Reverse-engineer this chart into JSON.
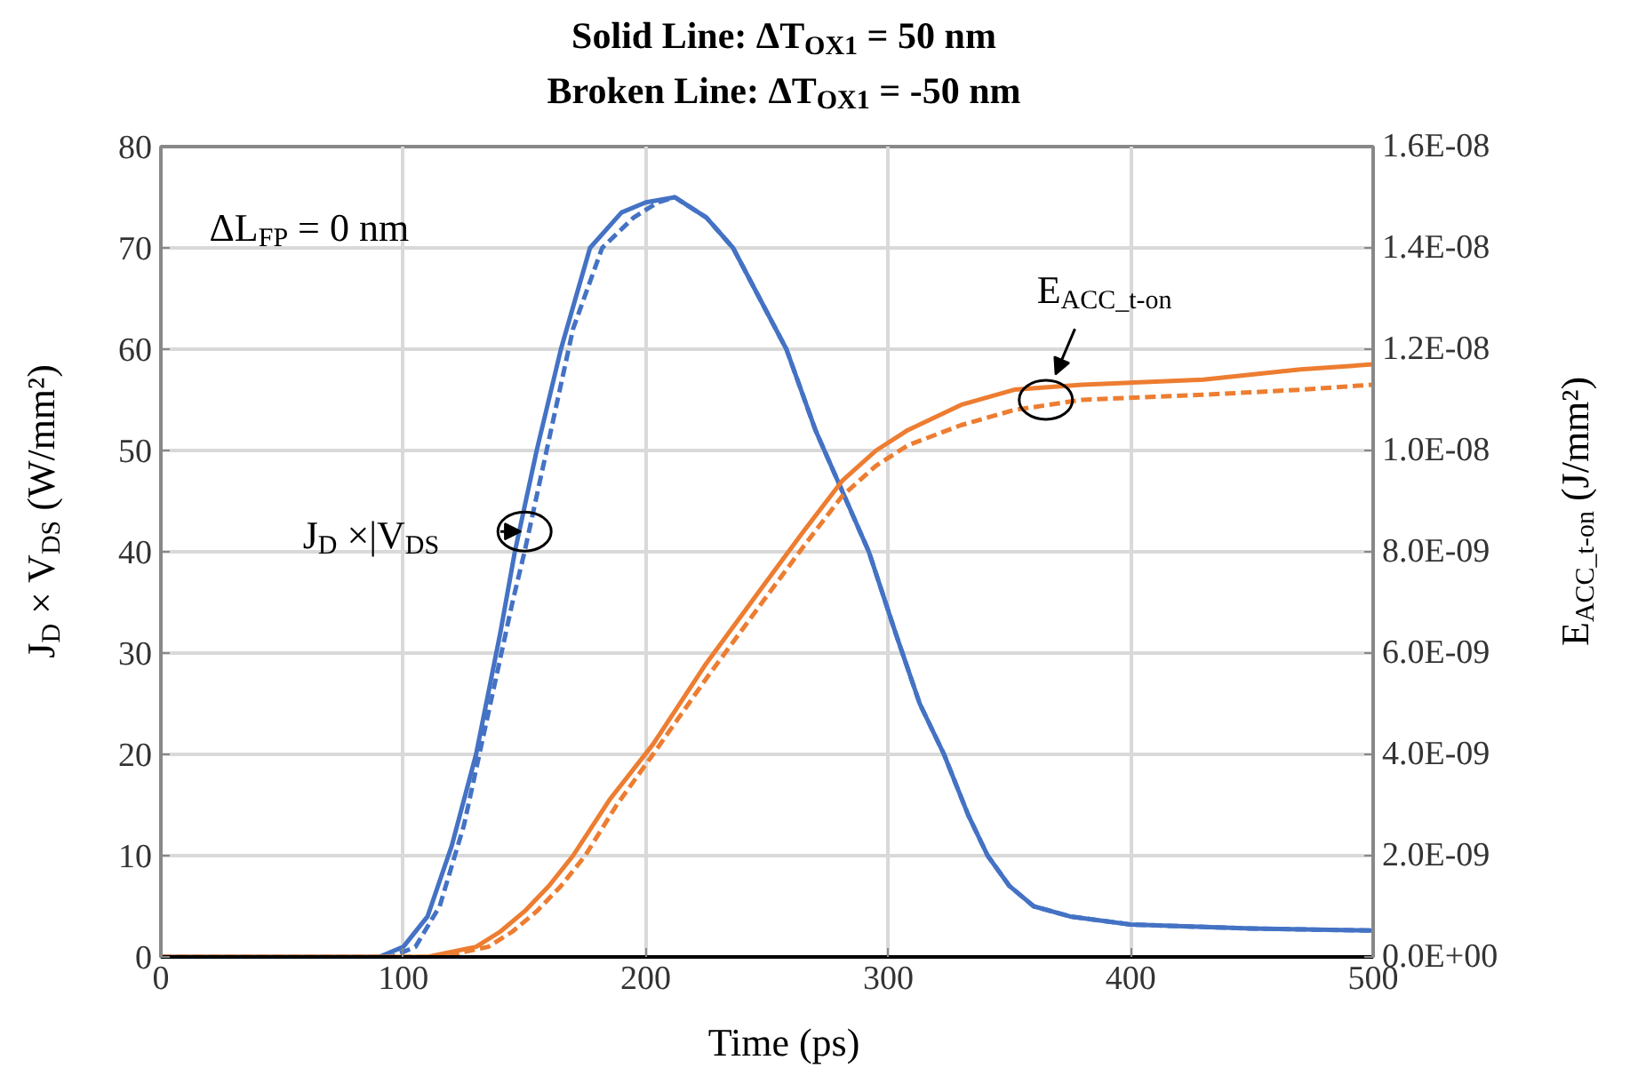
{
  "chart_data": {
    "type": "line",
    "title": "Solid Line: ΔT$_{OX1}$ = 50 nm",
    "subtitle": "Broken Line: ΔT$_{OX1}$ = -50 nm",
    "xlabel": "Time (ps)",
    "ylabel": "J$_{D}$ × V$_{DS}$ (W/mm²)",
    "y2label": "E$_{ACC_t-on}$ (J/mm²)",
    "xlim": [
      0,
      500
    ],
    "xticks": [
      0,
      100,
      200,
      300,
      400,
      500
    ],
    "ylim": [
      0,
      80
    ],
    "yticks": [
      0,
      10,
      20,
      30,
      40,
      50,
      60,
      70,
      80
    ],
    "y2lim": [
      0,
      1.6e-08
    ],
    "y2ticks": [
      {
        "value": 0,
        "label": "0.0E+00"
      },
      {
        "value": 2e-09,
        "label": "2.0E-09"
      },
      {
        "value": 4e-09,
        "label": "4.0E-09"
      },
      {
        "value": 6e-09,
        "label": "6.0E-09"
      },
      {
        "value": 8e-09,
        "label": "8.0E-09"
      },
      {
        "value": 1e-08,
        "label": "1.0E-08"
      },
      {
        "value": 1.2e-08,
        "label": "1.2E-08"
      },
      {
        "value": 1.4e-08,
        "label": "1.4E-08"
      },
      {
        "value": 1.6e-08,
        "label": "1.6E-08"
      }
    ],
    "grid": true,
    "marker": "none",
    "series": [
      {
        "color": "#4472c4",
        "line_style": "solid",
        "x": [
          0,
          90,
          100,
          110,
          120,
          130,
          140,
          146,
          155,
          165,
          177,
          190,
          200,
          212,
          225,
          236,
          247,
          258,
          270,
          281,
          292,
          303,
          313,
          323,
          333,
          341,
          350,
          360,
          375,
          400,
          450,
          500
        ],
        "values": [
          0,
          0,
          1,
          4,
          11,
          20,
          32,
          40,
          50,
          60,
          70,
          73.5,
          74.5,
          75,
          73,
          70,
          65,
          60,
          52,
          46,
          40,
          32,
          25,
          20,
          14,
          10,
          7,
          5,
          4,
          3.2,
          2.8,
          2.6
        ]
      },
      {
        "color": "#4472c4",
        "line_style": "dashed",
        "x": [
          0,
          95,
          105,
          115,
          125,
          135,
          145,
          150,
          160,
          170,
          182,
          195,
          205,
          212,
          225,
          236,
          247,
          258,
          270,
          281,
          292,
          303,
          313,
          323,
          333,
          341,
          350,
          360,
          375,
          400,
          450,
          500
        ],
        "values": [
          0,
          0,
          1,
          5,
          13,
          24,
          35,
          40,
          51,
          62,
          70,
          73,
          74.5,
          75,
          73,
          70,
          65,
          60,
          52,
          46,
          40,
          32,
          25,
          20,
          14,
          10,
          7,
          5,
          4,
          3.2,
          2.8,
          2.6
        ]
      },
      {
        "color": "#ed7d31",
        "line_style": "solid",
        "axis": "y2",
        "x": [
          0,
          110,
          120,
          130,
          140,
          150,
          160,
          170,
          185,
          203,
          225,
          248,
          265,
          281,
          295,
          308,
          330,
          352,
          380,
          430,
          470,
          500
        ],
        "values": [
          0,
          0,
          1e-10,
          2e-10,
          5e-10,
          9e-10,
          1.4e-09,
          2e-09,
          3.1e-09,
          4.2e-09,
          5.8e-09,
          7.3e-09,
          8.4e-09,
          9.4e-09,
          1e-08,
          1.04e-08,
          1.09e-08,
          1.12e-08,
          1.13e-08,
          1.14e-08,
          1.16e-08,
          1.17e-08
        ]
      },
      {
        "color": "#ed7d31",
        "line_style": "dashed",
        "axis": "y2",
        "x": [
          0,
          115,
          125,
          135,
          145,
          155,
          165,
          175,
          188,
          203,
          225,
          248,
          265,
          281,
          295,
          308,
          330,
          352,
          380,
          430,
          470,
          500
        ],
        "values": [
          0,
          0,
          1e-10,
          2e-10,
          5e-10,
          9e-10,
          1.4e-09,
          2e-09,
          3e-09,
          4e-09,
          5.5e-09,
          7e-09,
          8.1e-09,
          9.1e-09,
          9.7e-09,
          1.01e-08,
          1.05e-08,
          1.08e-08,
          1.1e-08,
          1.11e-08,
          1.12e-08,
          1.13e-08
        ]
      }
    ],
    "annotations": [
      "ΔL$_{FP}$ = 0 nm",
      {
        "text": "J$_{D}$ ×|V$_{DS}$",
        "x": 150,
        "y": 42
      },
      {
        "text": "E$_{ACC_t-on}$",
        "x": 365,
        "y": 55
      }
    ]
  }
}
